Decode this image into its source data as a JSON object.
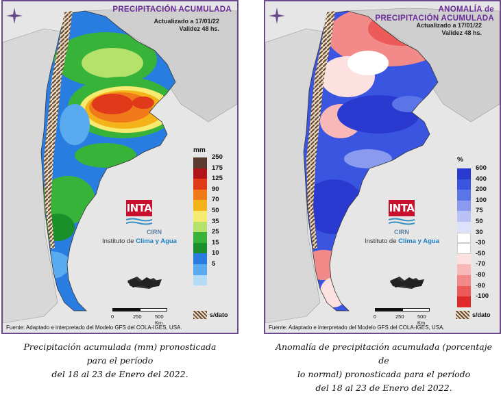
{
  "left": {
    "title": "PRECIPITACIÓN ACUMULADA",
    "updated": "Actualizado a 17/01/22",
    "validity": "Validez 48 hs.",
    "legend_unit": "mm",
    "legend": [
      {
        "label": "250",
        "color": "#5a3a2e"
      },
      {
        "label": "175",
        "color": "#b0151a"
      },
      {
        "label": "125",
        "color": "#e03a1a"
      },
      {
        "label": "90",
        "color": "#f07a1a"
      },
      {
        "label": "70",
        "color": "#f5b31a"
      },
      {
        "label": "50",
        "color": "#f7ea70"
      },
      {
        "label": "35",
        "color": "#b5e26a"
      },
      {
        "label": "25",
        "color": "#38b33a"
      },
      {
        "label": "15",
        "color": "#1a8f2a"
      },
      {
        "label": "10",
        "color": "#2a7de0"
      },
      {
        "label": "5",
        "color": "#5aaaf0"
      },
      {
        "label": "",
        "color": "#b5dcf7"
      }
    ],
    "nodata": "s/dato",
    "caption_lines": [
      "Precipitación acumulada (mm) pronosticada",
      "para el período",
      "del 18 al 23 de Enero del 2022."
    ]
  },
  "right": {
    "title_line1": "ANOMALÍA de",
    "title_line2": "PRECIPITACIÓN ACUMULADA",
    "updated": "Actualizado a 17/01/22",
    "validity": "Validez 48 hs.",
    "legend_unit": "%",
    "legend": [
      {
        "label": "600",
        "color": "#2a3ad0"
      },
      {
        "label": "400",
        "color": "#3a55e0"
      },
      {
        "label": "200",
        "color": "#5a75e8"
      },
      {
        "label": "100",
        "color": "#8a9bef"
      },
      {
        "label": "75",
        "color": "#b8c2f5"
      },
      {
        "label": "50",
        "color": "#dde2fb"
      },
      {
        "label": "30",
        "color": "#ffffff"
      },
      {
        "label": "-30",
        "color": "#ffffff"
      },
      {
        "label": "-50",
        "color": "#fde0e0"
      },
      {
        "label": "-70",
        "color": "#f9b8b8"
      },
      {
        "label": "-80",
        "color": "#f38a8a"
      },
      {
        "label": "-90",
        "color": "#ec5a5a"
      },
      {
        "label": "-100",
        "color": "#e02a2a"
      }
    ],
    "nodata": "s/dato",
    "caption_lines": [
      "Anomalía de precipitación acumulada (porcentaje de",
      "lo normal) pronosticada para el período",
      "del 18 al 23 de Enero del 2022."
    ]
  },
  "common": {
    "logo_text": "INTA",
    "cirn": "CIRN",
    "institute_prefix": "Instituto de",
    "institute_highlight": "Clima y Agua",
    "scale_ticks": [
      "0",
      "250",
      "500 Km"
    ],
    "source": "Fuente: Adaptado e interpretado del Modelo GFS del COLA-IGES, USA."
  }
}
